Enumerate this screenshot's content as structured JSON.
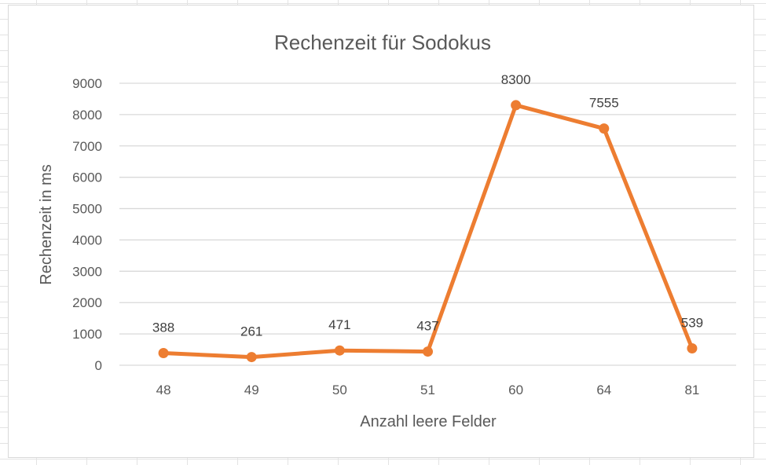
{
  "chart_data": {
    "type": "line",
    "title": "Rechenzeit für Sodokus",
    "xlabel": "Anzahl leere Felder",
    "ylabel": "Rechenzeit in ms",
    "categories": [
      "48",
      "49",
      "50",
      "51",
      "60",
      "64",
      "81"
    ],
    "values": [
      388,
      261,
      471,
      437,
      8300,
      7555,
      539
    ],
    "data_labels": [
      "388",
      "261",
      "471",
      "437",
      "8300",
      "7555",
      "539"
    ],
    "ylim": [
      0,
      9000
    ],
    "y_ticks": [
      "0",
      "1000",
      "2000",
      "3000",
      "4000",
      "5000",
      "6000",
      "7000",
      "8000",
      "9000"
    ],
    "grid": true,
    "legend": "none",
    "line_color": "#ED7D31",
    "grid_color": "#D9D9D9"
  }
}
